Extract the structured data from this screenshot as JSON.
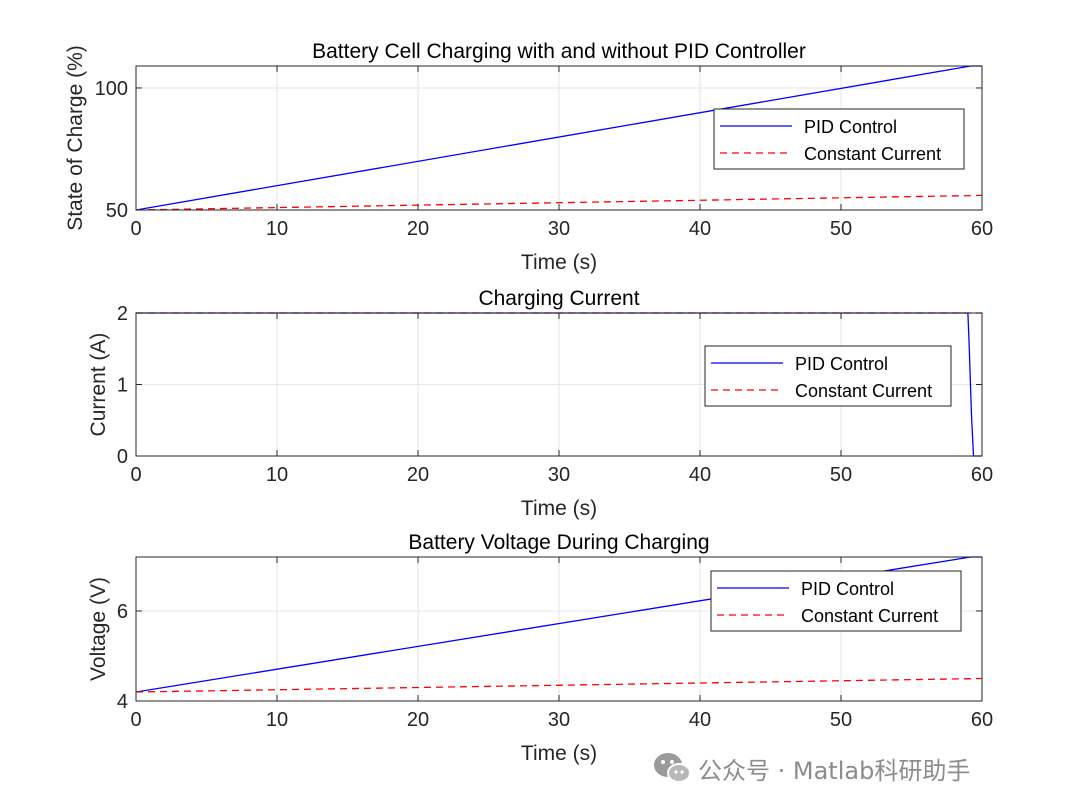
{
  "charts": [
    {
      "title": "Battery Cell Charging with and without PID Controller",
      "xlabel": "Time (s)",
      "ylabel": "State of Charge (%)",
      "xticks": [
        "0",
        "10",
        "20",
        "30",
        "40",
        "50",
        "60"
      ],
      "yticks": [
        "50",
        "100"
      ]
    },
    {
      "title": "Charging Current",
      "xlabel": "Time (s)",
      "ylabel": "Current (A)",
      "xticks": [
        "0",
        "10",
        "20",
        "30",
        "40",
        "50",
        "60"
      ],
      "yticks": [
        "0",
        "1",
        "2"
      ]
    },
    {
      "title": "Battery Voltage During Charging",
      "xlabel": "Time (s)",
      "ylabel": "Voltage (V)",
      "xticks": [
        "0",
        "10",
        "20",
        "30",
        "40",
        "50",
        "60"
      ],
      "yticks": [
        "4",
        "6"
      ]
    }
  ],
  "legend": {
    "pid_label": "PID Control",
    "cc_label": "Constant Current"
  },
  "colors": {
    "pid": "#0000ff",
    "cc": "#ff0000",
    "axes": "#262626",
    "grid": "#e6e6e6"
  },
  "watermark": {
    "text": "公众号 · Matlab科研助手"
  },
  "chart_data": [
    {
      "type": "line",
      "title": "Battery Cell Charging with and without PID Controller",
      "xlabel": "Time (s)",
      "ylabel": "State of Charge (%)",
      "xlim": [
        0,
        60
      ],
      "ylim": [
        50,
        109
      ],
      "grid": true,
      "legend_position": "right",
      "series": [
        {
          "name": "PID Control",
          "style": "solid",
          "color": "#0000ff",
          "x": [
            0,
            59.2,
            60
          ],
          "y": [
            50,
            109,
            109
          ]
        },
        {
          "name": "Constant Current",
          "style": "dashed",
          "color": "#ff0000",
          "x": [
            0,
            60
          ],
          "y": [
            50,
            56
          ]
        }
      ]
    },
    {
      "type": "line",
      "title": "Charging Current",
      "xlabel": "Time (s)",
      "ylabel": "Current (A)",
      "xlim": [
        0,
        60
      ],
      "ylim": [
        0,
        2
      ],
      "grid": true,
      "legend_position": "right",
      "series": [
        {
          "name": "PID Control",
          "style": "solid",
          "color": "#0000ff",
          "x": [
            0,
            59.0,
            59.1,
            59.25,
            59.4,
            60
          ],
          "y": [
            2,
            2,
            1.5,
            0.6,
            0,
            0
          ]
        },
        {
          "name": "Constant Current",
          "style": "dashed",
          "color": "#ff0000",
          "x": [
            0,
            60
          ],
          "y": [
            2,
            2
          ]
        }
      ]
    },
    {
      "type": "line",
      "title": "Battery Voltage During Charging",
      "xlabel": "Time (s)",
      "ylabel": "Voltage (V)",
      "xlim": [
        0,
        60
      ],
      "ylim": [
        4,
        7.2
      ],
      "grid": true,
      "legend_position": "top-right",
      "series": [
        {
          "name": "PID Control",
          "style": "solid",
          "color": "#0000ff",
          "x": [
            0,
            59.2,
            60
          ],
          "y": [
            4.2,
            7.2,
            7.2
          ]
        },
        {
          "name": "Constant Current",
          "style": "dashed",
          "color": "#ff0000",
          "x": [
            0,
            60
          ],
          "y": [
            4.2,
            4.5
          ]
        }
      ]
    }
  ]
}
